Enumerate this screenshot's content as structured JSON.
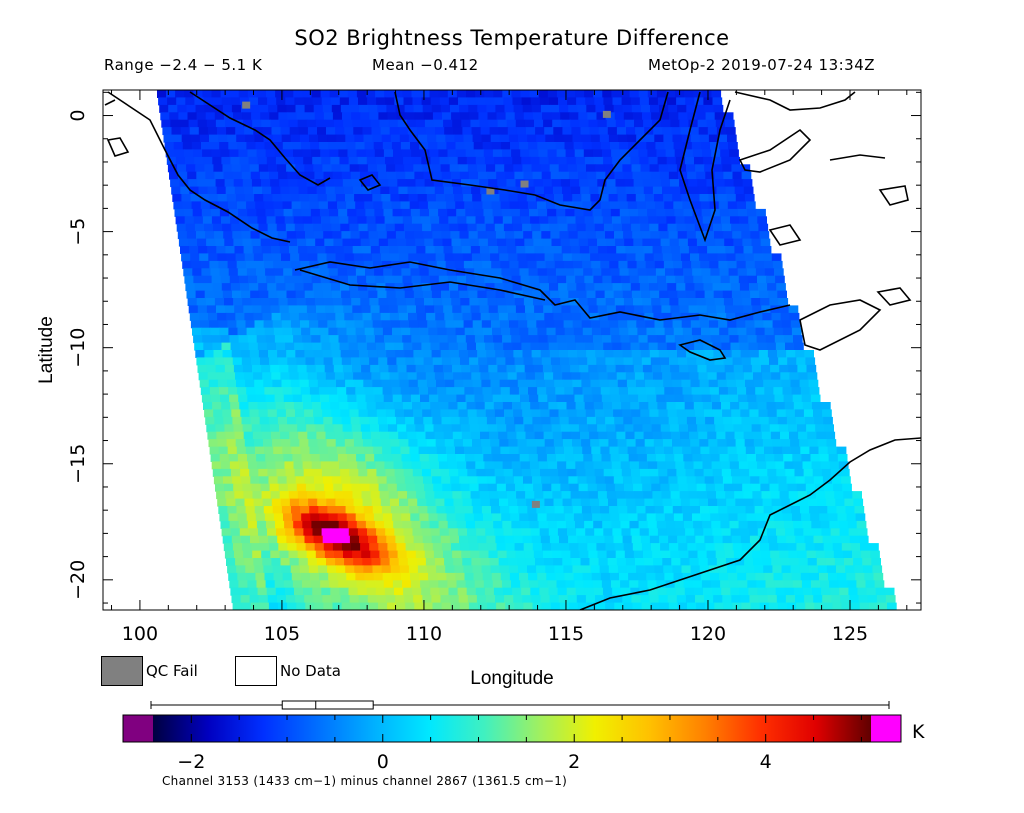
{
  "header": {
    "title": "SO2 Brightness Temperature Difference",
    "range": "Range −2.4 − 5.1 K",
    "mean": "Mean −0.412",
    "source": "MetOp-2 2019-07-24 13:34Z"
  },
  "legend": {
    "qc_fail": "QC Fail",
    "no_data": "No Data",
    "qc_color": "#808080"
  },
  "colorbar": {
    "unit": "K",
    "ticks": [
      "−2",
      "0",
      "2",
      "4"
    ],
    "tick_values": [
      -2,
      0,
      2,
      4
    ],
    "range": [
      -2.4,
      5.1
    ],
    "underflow_color": "#800080",
    "overflow_color": "#ff00ff",
    "stops": [
      "#000040",
      "#0000c0",
      "#0030ff",
      "#0070ff",
      "#00b0ff",
      "#00e8ff",
      "#40f0c0",
      "#a0f060",
      "#f0f000",
      "#ffc000",
      "#ff8000",
      "#ff3000",
      "#e00000",
      "#600000"
    ],
    "boxplot": {
      "min": -2.4,
      "q1": -1.05,
      "median": -0.7,
      "q3": -0.1,
      "max": 5.1
    }
  },
  "footer": "Channel 3153 (1433 cm−1) minus channel 2867 (1361.5 cm−1)",
  "chart_data": {
    "type": "heatmap",
    "title": "SO2 Brightness Temperature Difference",
    "xlabel": "Longitude",
    "ylabel": "Latitude",
    "xlim": [
      98.7,
      127.5
    ],
    "ylim": [
      -21.3,
      1.1
    ],
    "xticks": [
      100,
      105,
      110,
      115,
      120,
      125
    ],
    "yticks": [
      0,
      -5,
      -10,
      -15,
      -20
    ],
    "xtick_labels": [
      "100",
      "105",
      "110",
      "115",
      "120",
      "125"
    ],
    "ytick_labels": [
      "0",
      "−5",
      "−10",
      "−15",
      "−20"
    ],
    "units": "K",
    "value_range": [
      -2.4,
      5.1
    ],
    "mean": -0.412,
    "swath_corners": [
      [
        100.6,
        1.1
      ],
      [
        120.3,
        1.1
      ],
      [
        126.5,
        -21.3
      ],
      [
        103.3,
        -21.3
      ]
    ],
    "plume_peak": {
      "lon": 106.8,
      "lat": -18.0,
      "value": 5.1
    },
    "grid": false
  }
}
